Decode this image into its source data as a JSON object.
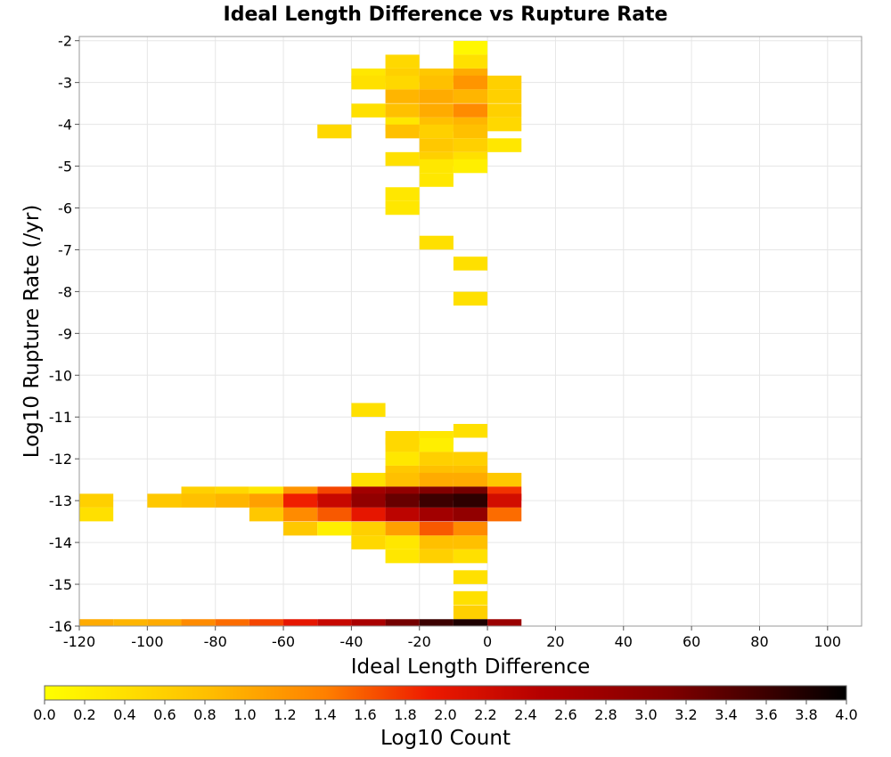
{
  "chart_data": {
    "type": "heatmap",
    "title": "Ideal Length Difference vs Rupture Rate",
    "xlabel": "Ideal Length Difference",
    "ylabel": "Log10 Rupture Rate (/yr)",
    "xlim": [
      -120,
      110
    ],
    "ylim": [
      -16,
      -1.9
    ],
    "xticks": [
      -120,
      -100,
      -80,
      -60,
      -40,
      -20,
      0,
      20,
      40,
      60,
      80,
      100
    ],
    "yticks": [
      -2,
      -3,
      -4,
      -5,
      -6,
      -7,
      -8,
      -9,
      -10,
      -11,
      -12,
      -13,
      -14,
      -15,
      -16
    ],
    "bin_width_x": 10,
    "bin_height_y": 0.33,
    "grid": true,
    "colorbar": {
      "label": "Log10 Count",
      "min": 0.0,
      "max": 4.0,
      "ticks": [
        "0.0",
        "0.2",
        "0.4",
        "0.6",
        "0.8",
        "1.0",
        "1.2",
        "1.4",
        "1.6",
        "1.8",
        "2.0",
        "2.2",
        "2.4",
        "2.6",
        "2.8",
        "3.0",
        "3.2",
        "3.4",
        "3.6",
        "3.8",
        "4.0"
      ],
      "placement": "bottom"
    },
    "cells": [
      {
        "x": -10,
        "y": -2.17,
        "v": 0.1
      },
      {
        "x": -30,
        "y": -2.5,
        "v": 0.5
      },
      {
        "x": -10,
        "y": -2.5,
        "v": 0.4
      },
      {
        "x": -40,
        "y": -2.83,
        "v": 0.3
      },
      {
        "x": -30,
        "y": -2.83,
        "v": 0.6
      },
      {
        "x": -20,
        "y": -2.83,
        "v": 0.7
      },
      {
        "x": -10,
        "y": -2.83,
        "v": 1.0
      },
      {
        "x": -40,
        "y": -3.0,
        "v": 0.4
      },
      {
        "x": -30,
        "y": -3.0,
        "v": 0.5
      },
      {
        "x": -20,
        "y": -3.0,
        "v": 0.8
      },
      {
        "x": -10,
        "y": -3.0,
        "v": 1.2
      },
      {
        "x": 0,
        "y": -3.0,
        "v": 0.6
      },
      {
        "x": -30,
        "y": -3.33,
        "v": 0.9
      },
      {
        "x": -20,
        "y": -3.33,
        "v": 1.0
      },
      {
        "x": -10,
        "y": -3.33,
        "v": 0.9
      },
      {
        "x": 0,
        "y": -3.33,
        "v": 0.6
      },
      {
        "x": -40,
        "y": -3.67,
        "v": 0.4
      },
      {
        "x": -30,
        "y": -3.67,
        "v": 0.8
      },
      {
        "x": -20,
        "y": -3.67,
        "v": 1.0
      },
      {
        "x": -10,
        "y": -3.67,
        "v": 1.3
      },
      {
        "x": 0,
        "y": -3.67,
        "v": 0.6
      },
      {
        "x": -30,
        "y": -4.0,
        "v": 0.3
      },
      {
        "x": -20,
        "y": -4.0,
        "v": 0.8
      },
      {
        "x": -10,
        "y": -4.0,
        "v": 0.9
      },
      {
        "x": 0,
        "y": -4.0,
        "v": 0.5
      },
      {
        "x": -50,
        "y": -4.17,
        "v": 0.5
      },
      {
        "x": -30,
        "y": -4.17,
        "v": 0.8
      },
      {
        "x": -20,
        "y": -4.17,
        "v": 0.6
      },
      {
        "x": -10,
        "y": -4.17,
        "v": 0.8
      },
      {
        "x": -20,
        "y": -4.5,
        "v": 0.7
      },
      {
        "x": -10,
        "y": -4.5,
        "v": 0.6
      },
      {
        "x": 0,
        "y": -4.5,
        "v": 0.3
      },
      {
        "x": -30,
        "y": -4.83,
        "v": 0.4
      },
      {
        "x": -20,
        "y": -4.83,
        "v": 0.6
      },
      {
        "x": -10,
        "y": -4.83,
        "v": 0.4
      },
      {
        "x": -20,
        "y": -5.0,
        "v": 0.3
      },
      {
        "x": -10,
        "y": -5.0,
        "v": 0.2
      },
      {
        "x": -20,
        "y": -5.33,
        "v": 0.3
      },
      {
        "x": -30,
        "y": -5.67,
        "v": 0.3
      },
      {
        "x": -30,
        "y": -6.0,
        "v": 0.3
      },
      {
        "x": -20,
        "y": -6.83,
        "v": 0.4
      },
      {
        "x": -10,
        "y": -7.33,
        "v": 0.4
      },
      {
        "x": -10,
        "y": -8.17,
        "v": 0.4
      },
      {
        "x": -40,
        "y": -10.83,
        "v": 0.4
      },
      {
        "x": -10,
        "y": -11.33,
        "v": 0.4
      },
      {
        "x": -30,
        "y": -11.5,
        "v": 0.5
      },
      {
        "x": -20,
        "y": -11.5,
        "v": 0.3
      },
      {
        "x": -30,
        "y": -11.67,
        "v": 0.5
      },
      {
        "x": -20,
        "y": -11.67,
        "v": 0.2
      },
      {
        "x": -30,
        "y": -12.0,
        "v": 0.3
      },
      {
        "x": -20,
        "y": -12.0,
        "v": 0.6
      },
      {
        "x": -10,
        "y": -12.0,
        "v": 0.6
      },
      {
        "x": -30,
        "y": -12.33,
        "v": 0.7
      },
      {
        "x": -20,
        "y": -12.33,
        "v": 0.8
      },
      {
        "x": -10,
        "y": -12.33,
        "v": 0.8
      },
      {
        "x": -40,
        "y": -12.5,
        "v": 0.4
      },
      {
        "x": -30,
        "y": -12.5,
        "v": 0.8
      },
      {
        "x": -20,
        "y": -12.5,
        "v": 1.0
      },
      {
        "x": -10,
        "y": -12.5,
        "v": 1.0
      },
      {
        "x": 0,
        "y": -12.5,
        "v": 0.7
      },
      {
        "x": -90,
        "y": -12.83,
        "v": 0.6
      },
      {
        "x": -80,
        "y": -12.83,
        "v": 0.5
      },
      {
        "x": -70,
        "y": -12.83,
        "v": 0.3
      },
      {
        "x": -60,
        "y": -12.83,
        "v": 1.2
      },
      {
        "x": -50,
        "y": -12.83,
        "v": 1.7
      },
      {
        "x": -40,
        "y": -12.83,
        "v": 2.7
      },
      {
        "x": -30,
        "y": -12.83,
        "v": 2.9
      },
      {
        "x": -20,
        "y": -12.83,
        "v": 3.1
      },
      {
        "x": -10,
        "y": -12.83,
        "v": 3.2
      },
      {
        "x": 0,
        "y": -12.83,
        "v": 1.8
      },
      {
        "x": -120,
        "y": -13.0,
        "v": 0.6
      },
      {
        "x": -100,
        "y": -13.0,
        "v": 0.7
      },
      {
        "x": -90,
        "y": -13.0,
        "v": 0.8
      },
      {
        "x": -80,
        "y": -13.0,
        "v": 0.9
      },
      {
        "x": -70,
        "y": -13.0,
        "v": 1.1
      },
      {
        "x": -60,
        "y": -13.0,
        "v": 1.9
      },
      {
        "x": -50,
        "y": -13.0,
        "v": 2.3
      },
      {
        "x": -40,
        "y": -13.0,
        "v": 2.9
      },
      {
        "x": -30,
        "y": -13.0,
        "v": 3.3
      },
      {
        "x": -20,
        "y": -13.0,
        "v": 3.6
      },
      {
        "x": -10,
        "y": -13.0,
        "v": 3.7
      },
      {
        "x": 0,
        "y": -13.0,
        "v": 2.2
      },
      {
        "x": -120,
        "y": -13.33,
        "v": 0.4
      },
      {
        "x": -70,
        "y": -13.33,
        "v": 0.7
      },
      {
        "x": -60,
        "y": -13.33,
        "v": 1.3
      },
      {
        "x": -50,
        "y": -13.33,
        "v": 1.6
      },
      {
        "x": -40,
        "y": -13.33,
        "v": 2.0
      },
      {
        "x": -30,
        "y": -13.33,
        "v": 2.4
      },
      {
        "x": -20,
        "y": -13.33,
        "v": 2.7
      },
      {
        "x": -10,
        "y": -13.33,
        "v": 2.9
      },
      {
        "x": 0,
        "y": -13.33,
        "v": 1.5
      },
      {
        "x": -60,
        "y": -13.67,
        "v": 0.7
      },
      {
        "x": -50,
        "y": -13.67,
        "v": 0.2
      },
      {
        "x": -40,
        "y": -13.67,
        "v": 0.6
      },
      {
        "x": -30,
        "y": -13.67,
        "v": 1.1
      },
      {
        "x": -20,
        "y": -13.67,
        "v": 1.6
      },
      {
        "x": -10,
        "y": -13.67,
        "v": 1.3
      },
      {
        "x": -40,
        "y": -14.0,
        "v": 0.5
      },
      {
        "x": -30,
        "y": -14.0,
        "v": 0.3
      },
      {
        "x": -20,
        "y": -14.0,
        "v": 0.8
      },
      {
        "x": -10,
        "y": -14.0,
        "v": 0.8
      },
      {
        "x": -30,
        "y": -14.33,
        "v": 0.3
      },
      {
        "x": -20,
        "y": -14.33,
        "v": 0.6
      },
      {
        "x": -10,
        "y": -14.33,
        "v": 0.4
      },
      {
        "x": -10,
        "y": -14.83,
        "v": 0.4
      },
      {
        "x": -10,
        "y": -15.33,
        "v": 0.4
      },
      {
        "x": -10,
        "y": -15.67,
        "v": 0.6
      },
      {
        "x": -120,
        "y": -16.0,
        "v": 1.0
      },
      {
        "x": -110,
        "y": -16.0,
        "v": 0.9
      },
      {
        "x": -100,
        "y": -16.0,
        "v": 1.0
      },
      {
        "x": -90,
        "y": -16.0,
        "v": 1.3
      },
      {
        "x": -80,
        "y": -16.0,
        "v": 1.5
      },
      {
        "x": -70,
        "y": -16.0,
        "v": 1.7
      },
      {
        "x": -60,
        "y": -16.0,
        "v": 2.0
      },
      {
        "x": -50,
        "y": -16.0,
        "v": 2.3
      },
      {
        "x": -40,
        "y": -16.0,
        "v": 2.6
      },
      {
        "x": -30,
        "y": -16.0,
        "v": 3.2
      },
      {
        "x": -20,
        "y": -16.0,
        "v": 3.6
      },
      {
        "x": -10,
        "y": -16.0,
        "v": 3.8
      },
      {
        "x": 0,
        "y": -16.0,
        "v": 2.8
      }
    ]
  }
}
